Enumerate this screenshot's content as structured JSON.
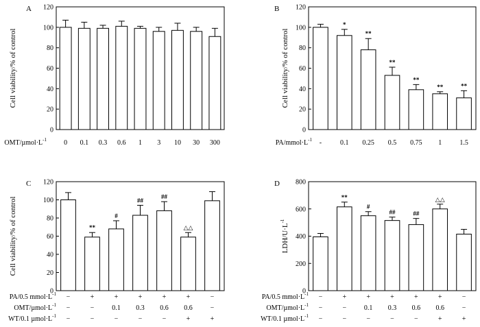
{
  "chart_data": [
    {
      "panel": "A",
      "type": "bar",
      "ylabel": "Cell viability/% of control",
      "ylim": [
        0,
        120
      ],
      "yticks": [
        0,
        20,
        40,
        60,
        80,
        100,
        120
      ],
      "row_labels": [
        "OMT/µmol·L"
      ],
      "row_label_sup": [
        "-1"
      ],
      "rows": [
        [
          "0",
          "0.1",
          "0.3",
          "0.6",
          "1",
          "3",
          "10",
          "30",
          "300"
        ]
      ],
      "values": [
        100,
        99,
        99,
        101,
        99,
        96,
        97,
        96,
        91
      ],
      "errors": [
        7,
        6,
        3,
        5,
        2,
        4,
        7,
        4,
        8
      ],
      "annotations": [
        "",
        "",
        "",
        "",
        "",
        "",
        "",
        "",
        ""
      ]
    },
    {
      "panel": "B",
      "type": "bar",
      "ylabel": "Cell viability/% of control",
      "ylim": [
        0,
        120
      ],
      "yticks": [
        0,
        20,
        40,
        60,
        80,
        100,
        120
      ],
      "row_labels": [
        "PA/mmol·L"
      ],
      "row_label_sup": [
        "-1"
      ],
      "rows": [
        [
          "-",
          "0.1",
          "0.25",
          "0.5",
          "0.75",
          "1",
          "1.5"
        ]
      ],
      "values": [
        100,
        92,
        78,
        53,
        39,
        35,
        31
      ],
      "errors": [
        3,
        6,
        11,
        8,
        5,
        2,
        7
      ],
      "annotations": [
        "",
        "*",
        "**",
        "**",
        "**",
        "**",
        "**"
      ]
    },
    {
      "panel": "C",
      "type": "bar",
      "ylabel": "Cell viability/% of control",
      "ylim": [
        0,
        120
      ],
      "yticks": [
        0,
        20,
        40,
        60,
        80,
        100,
        120
      ],
      "row_labels": [
        "PA/0.5 mmol·L",
        "OMT/µmol·L",
        "WT/0.1 µmol·L"
      ],
      "row_label_sup": [
        "-1",
        "-1",
        "-1"
      ],
      "rows": [
        [
          "−",
          "+",
          "+",
          "+",
          "+",
          "+",
          "−"
        ],
        [
          "−",
          "−",
          "0.1",
          "0.3",
          "0.6",
          "0.6",
          "−"
        ],
        [
          "−",
          "−",
          "−",
          "−",
          "−",
          "+",
          "+"
        ]
      ],
      "values": [
        100,
        59,
        68,
        83,
        88,
        59,
        99
      ],
      "errors": [
        8,
        5,
        9,
        11,
        10,
        5,
        10
      ],
      "annotations": [
        "",
        "**",
        "#",
        "##",
        "##",
        "△△",
        ""
      ]
    },
    {
      "panel": "D",
      "type": "bar",
      "ylabel": "LDH/U·L",
      "ylabel_sup": "-1",
      "ylim": [
        0,
        800
      ],
      "yticks": [
        0,
        200,
        400,
        600,
        800
      ],
      "row_labels": [
        "PA/0.5 mmol·L",
        "OMT/µmol·L",
        "WT/0.1 µmol·L"
      ],
      "row_label_sup": [
        "-1",
        "-1",
        "-1"
      ],
      "rows": [
        [
          "−",
          "+",
          "+",
          "+",
          "+",
          "+",
          "−"
        ],
        [
          "−",
          "−",
          "0.1",
          "0.3",
          "0.6",
          "0.6",
          "−"
        ],
        [
          "−",
          "−",
          "−",
          "−",
          "−",
          "+",
          "+"
        ]
      ],
      "values": [
        395,
        615,
        550,
        515,
        485,
        600,
        415
      ],
      "errors": [
        25,
        35,
        30,
        25,
        45,
        35,
        35
      ],
      "annotations": [
        "",
        "**",
        "#",
        "##",
        "##",
        "△△",
        ""
      ]
    }
  ]
}
